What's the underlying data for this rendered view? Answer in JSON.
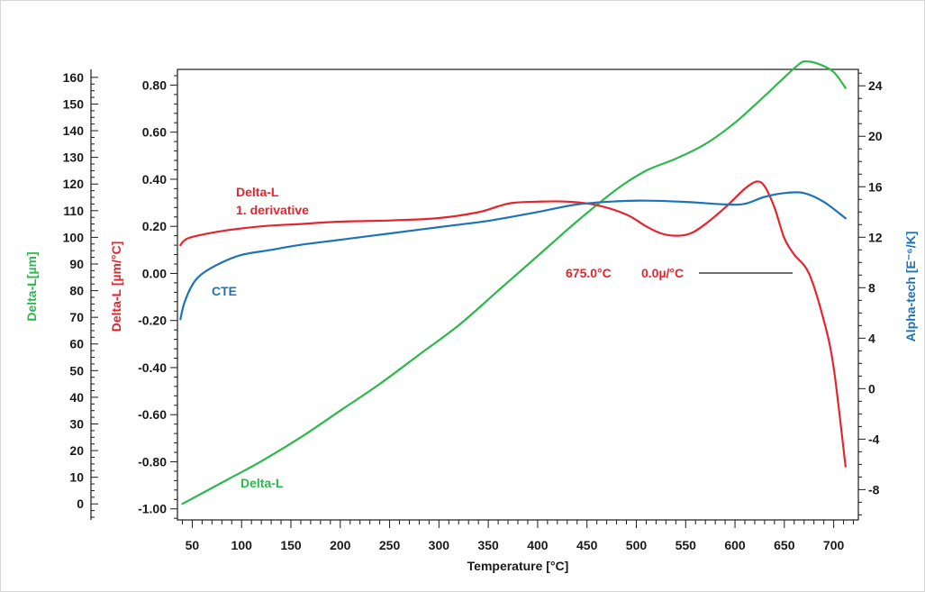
{
  "chart_data": {
    "type": "line",
    "xlabel": "Temperature [°C]",
    "xlim": [
      35,
      725
    ],
    "x_ticks": [
      50,
      100,
      150,
      200,
      250,
      300,
      350,
      400,
      450,
      500,
      550,
      600,
      650,
      700
    ],
    "axes": {
      "delta_l": {
        "label": "Delta-L[µm]",
        "color": "#2db84d",
        "lim": [
          -6,
          163
        ],
        "ticks": [
          "0",
          "10",
          "20",
          "30",
          "40",
          "50",
          "60",
          "70",
          "80",
          "90",
          "100",
          "110",
          "120",
          "130",
          "140",
          "150",
          "160"
        ],
        "tick_values": [
          0,
          10,
          20,
          30,
          40,
          50,
          60,
          70,
          80,
          90,
          100,
          110,
          120,
          130,
          140,
          150,
          160
        ]
      },
      "derivative": {
        "label": "Delta-L [µm/°C]",
        "color": "#e3262e",
        "lim": [
          -1.047,
          0.8667
        ],
        "ticks": [
          "0.80",
          "0.60",
          "0.40",
          "0.20",
          "0.00",
          "-0.20",
          "-0.40",
          "-0.60",
          "-0.80",
          "-1.00"
        ],
        "tick_values": [
          0.8,
          0.6,
          0.4,
          0.2,
          0.0,
          -0.2,
          -0.4,
          -0.6,
          -0.8,
          -1.0
        ]
      },
      "cte": {
        "label": "Alpha-tech [E⁻⁶/K]",
        "color": "#1e73b8",
        "lim": [
          -10.4,
          25.3
        ],
        "ticks": [
          "24",
          "20",
          "16",
          "12",
          "8",
          "4",
          "0",
          "-4",
          "-8"
        ],
        "tick_values": [
          24,
          20,
          16,
          12,
          8,
          4,
          0,
          -4,
          -8
        ]
      }
    },
    "series": [
      {
        "name": "Delta-L",
        "axis": "delta_l",
        "color": "#2db84d",
        "x": [
          40,
          80,
          120,
          160,
          200,
          240,
          280,
          320,
          360,
          400,
          440,
          480,
          510,
          540,
          570,
          600,
          630,
          650,
          665,
          672,
          685,
          700,
          712
        ],
        "y": [
          0,
          8,
          16,
          25,
          35,
          45,
          56,
          67,
          80,
          93,
          106,
          118,
          125,
          129.5,
          135,
          143,
          153,
          160,
          165,
          166,
          165,
          162,
          156
        ]
      },
      {
        "name": "Delta-L 1. derivative",
        "axis": "derivative",
        "color": "#e3262e",
        "x": [
          38,
          42,
          50,
          80,
          120,
          160,
          200,
          250,
          300,
          340,
          360,
          375,
          400,
          430,
          460,
          490,
          510,
          525,
          540,
          555,
          570,
          590,
          610,
          622,
          630,
          640,
          650,
          660,
          675,
          690,
          700,
          712
        ],
        "y": [
          0.12,
          0.14,
          0.155,
          0.18,
          0.2,
          0.21,
          0.22,
          0.225,
          0.235,
          0.26,
          0.285,
          0.3,
          0.305,
          0.305,
          0.29,
          0.25,
          0.2,
          0.17,
          0.16,
          0.17,
          0.21,
          0.28,
          0.36,
          0.39,
          0.37,
          0.28,
          0.15,
          0.08,
          0.0,
          -0.2,
          -0.4,
          -0.82
        ]
      },
      {
        "name": "CTE",
        "axis": "cte",
        "color": "#1e73b8",
        "x": [
          38,
          42,
          50,
          60,
          80,
          100,
          130,
          160,
          200,
          250,
          300,
          350,
          400,
          440,
          480,
          510,
          550,
          590,
          610,
          630,
          650,
          670,
          690,
          712
        ],
        "y": [
          5.5,
          6.8,
          8.2,
          9.1,
          10.0,
          10.6,
          11.0,
          11.4,
          11.8,
          12.3,
          12.8,
          13.3,
          14.0,
          14.6,
          14.85,
          14.9,
          14.8,
          14.6,
          14.65,
          15.2,
          15.5,
          15.5,
          14.8,
          13.5
        ]
      }
    ],
    "annotations": [
      {
        "text": "Delta-L",
        "color": "#e3262e"
      },
      {
        "text": "1. derivative",
        "color": "#e3262e"
      },
      {
        "text": "CTE",
        "color": "#1e73b8"
      },
      {
        "text": "Delta-L",
        "color": "#2db84d"
      },
      {
        "text": "675.0°C",
        "color": "#e3262e"
      },
      {
        "text": "0.0µ/°C",
        "color": "#e3262e"
      }
    ],
    "grid": false,
    "legend": "none"
  }
}
